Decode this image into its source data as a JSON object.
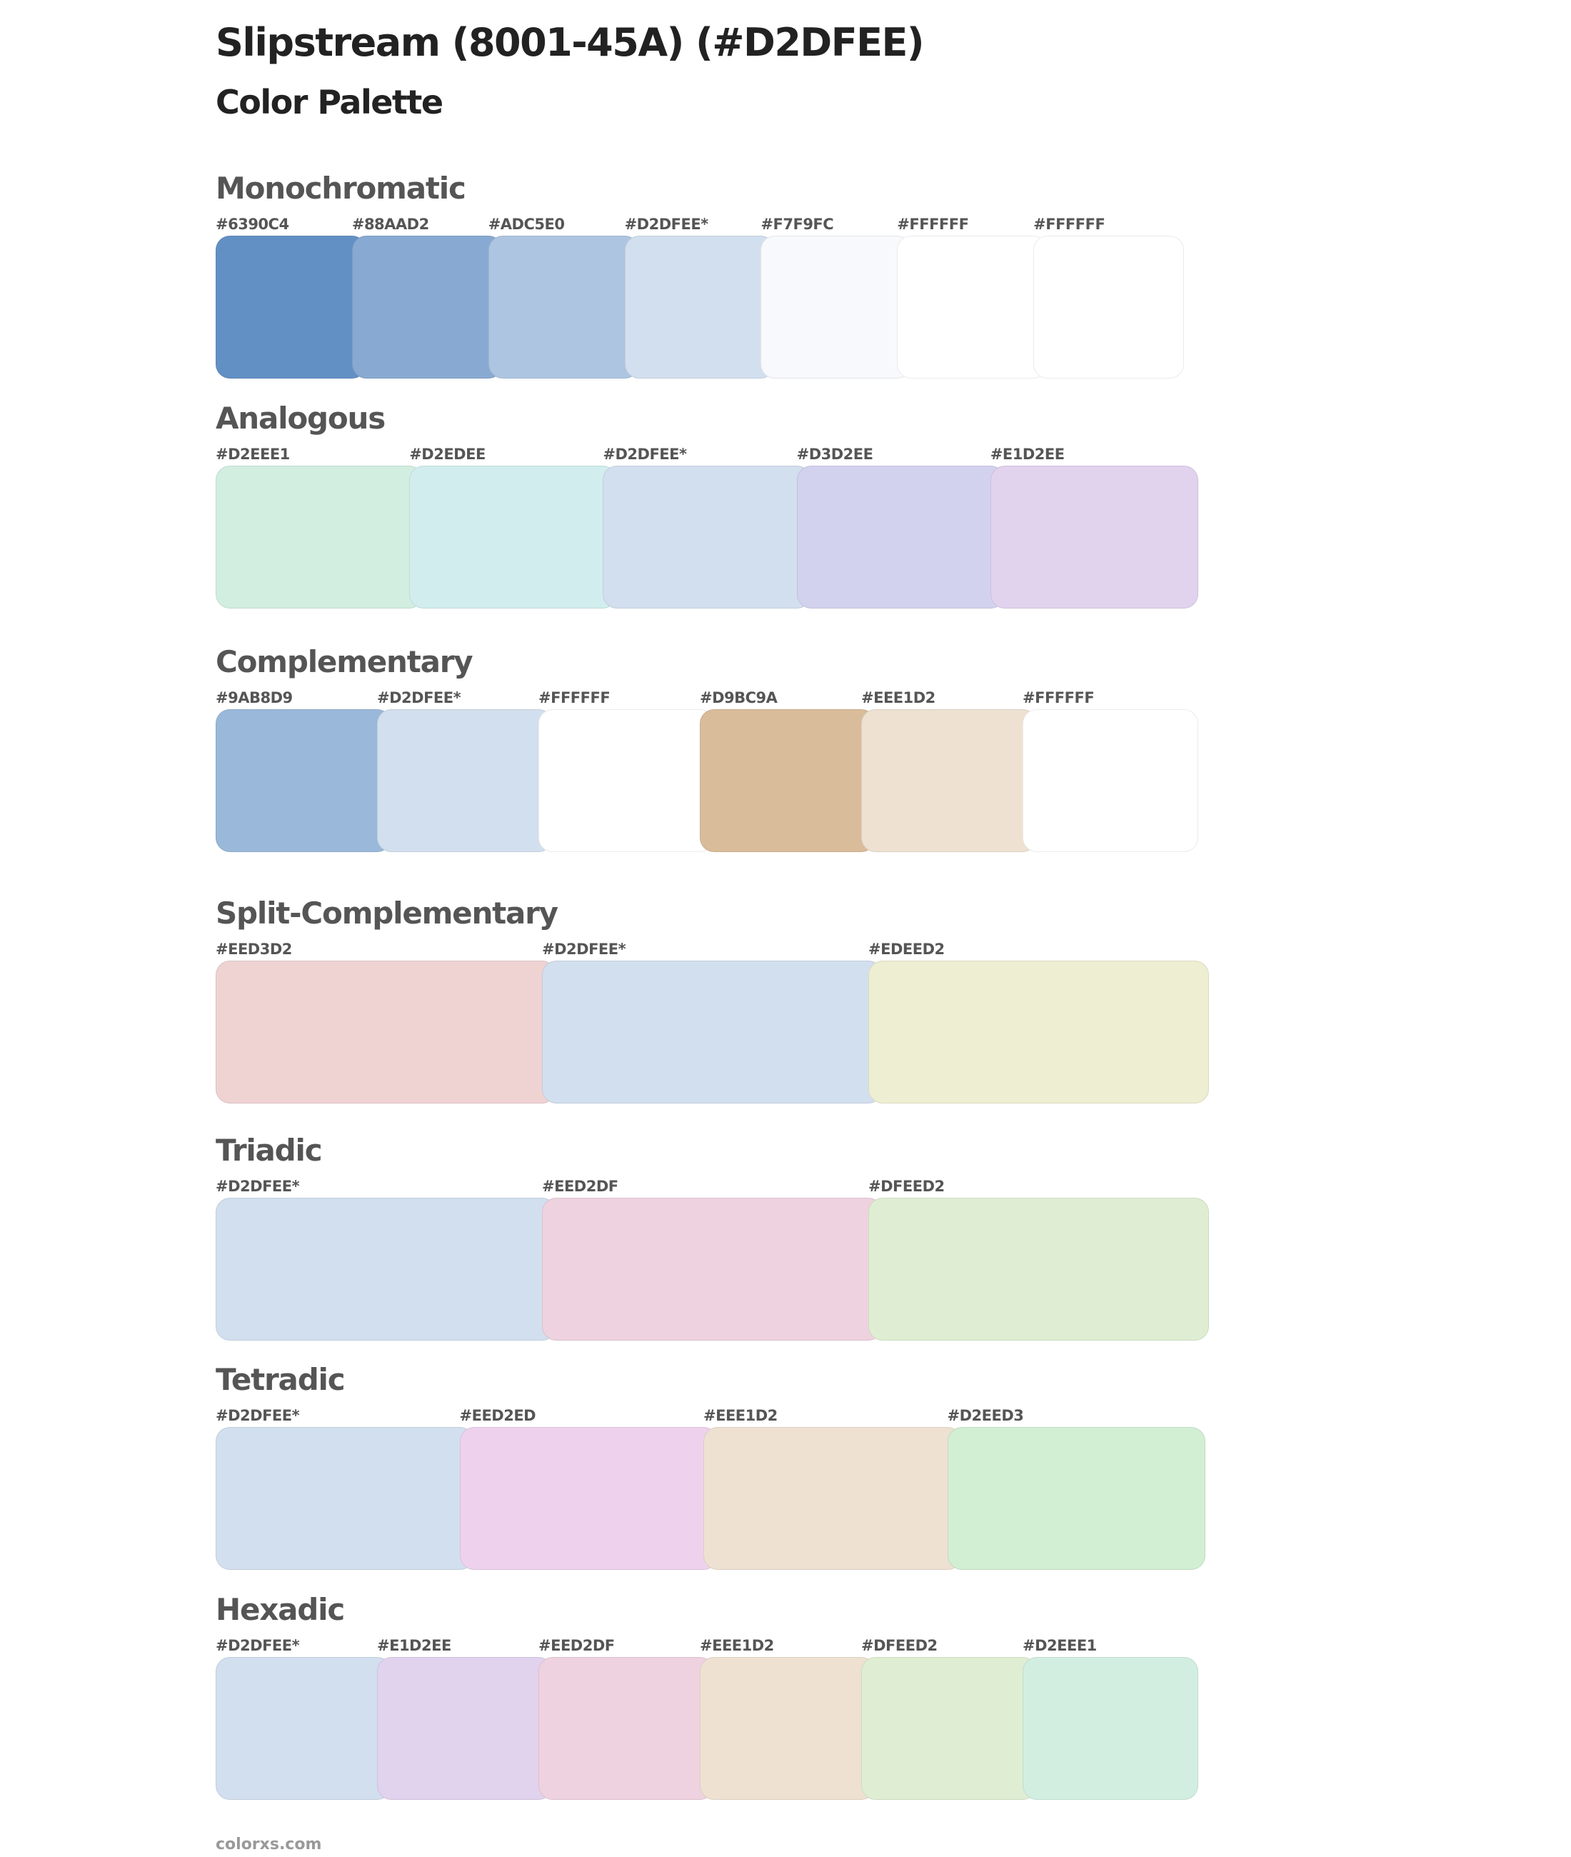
{
  "title": "Slipstream (8001-45A) (#D2DFEE)",
  "subtitle": "Color Palette",
  "sections": [
    {
      "name": "Monochromatic",
      "swatches": [
        {
          "label": "#6390C4",
          "color": "#6390C4"
        },
        {
          "label": "#88AAD2",
          "color": "#88AAD2"
        },
        {
          "label": "#ADC5E0",
          "color": "#ADC5E0"
        },
        {
          "label": "#D2DFEE*",
          "color": "#D2DFEE"
        },
        {
          "label": "#F7F9FC",
          "color": "#F7F9FC"
        },
        {
          "label": "#FFFFFF",
          "color": "#FFFFFF"
        },
        {
          "label": "#FFFFFF",
          "color": "#FFFFFF"
        }
      ]
    },
    {
      "name": "Analogous",
      "swatches": [
        {
          "label": "#D2EEE1",
          "color": "#D2EEE1"
        },
        {
          "label": "#D2EDEE",
          "color": "#D2EDEE"
        },
        {
          "label": "#D2DFEE*",
          "color": "#D2DFEE"
        },
        {
          "label": "#D3D2EE",
          "color": "#D3D2EE"
        },
        {
          "label": "#E1D2EE",
          "color": "#E1D2EE"
        }
      ]
    },
    {
      "name": "Complementary",
      "swatches": [
        {
          "label": "#9AB8D9",
          "color": "#9AB8D9"
        },
        {
          "label": "#D2DFEE*",
          "color": "#D2DFEE"
        },
        {
          "label": "#FFFFFF",
          "color": "#FFFFFF"
        },
        {
          "label": "#D9BC9A",
          "color": "#D9BC9A"
        },
        {
          "label": "#EEE1D2",
          "color": "#EEE1D2"
        },
        {
          "label": "#FFFFFF",
          "color": "#FFFFFF"
        }
      ]
    },
    {
      "name": "Split-Complementary",
      "swatches": [
        {
          "label": "#EED3D2",
          "color": "#EED3D2"
        },
        {
          "label": "#D2DFEE*",
          "color": "#D2DFEE"
        },
        {
          "label": "#EDEED2",
          "color": "#EDEED2"
        }
      ]
    },
    {
      "name": "Triadic",
      "swatches": [
        {
          "label": "#D2DFEE*",
          "color": "#D2DFEE"
        },
        {
          "label": "#EED2DF",
          "color": "#EED2DF"
        },
        {
          "label": "#DFEED2",
          "color": "#DFEED2"
        }
      ]
    },
    {
      "name": "Tetradic",
      "swatches": [
        {
          "label": "#D2DFEE*",
          "color": "#D2DFEE"
        },
        {
          "label": "#EED2ED",
          "color": "#EED2ED"
        },
        {
          "label": "#EEE1D2",
          "color": "#EEE1D2"
        },
        {
          "label": "#D2EED3",
          "color": "#D2EED3"
        }
      ]
    },
    {
      "name": "Hexadic",
      "swatches": [
        {
          "label": "#D2DFEE*",
          "color": "#D2DFEE"
        },
        {
          "label": "#E1D2EE",
          "color": "#E1D2EE"
        },
        {
          "label": "#EED2DF",
          "color": "#EED2DF"
        },
        {
          "label": "#EEE1D2",
          "color": "#EEE1D2"
        },
        {
          "label": "#DFEED2",
          "color": "#DFEED2"
        },
        {
          "label": "#D2EEE1",
          "color": "#D2EEE1"
        }
      ]
    }
  ],
  "footer": "colorxs.com"
}
